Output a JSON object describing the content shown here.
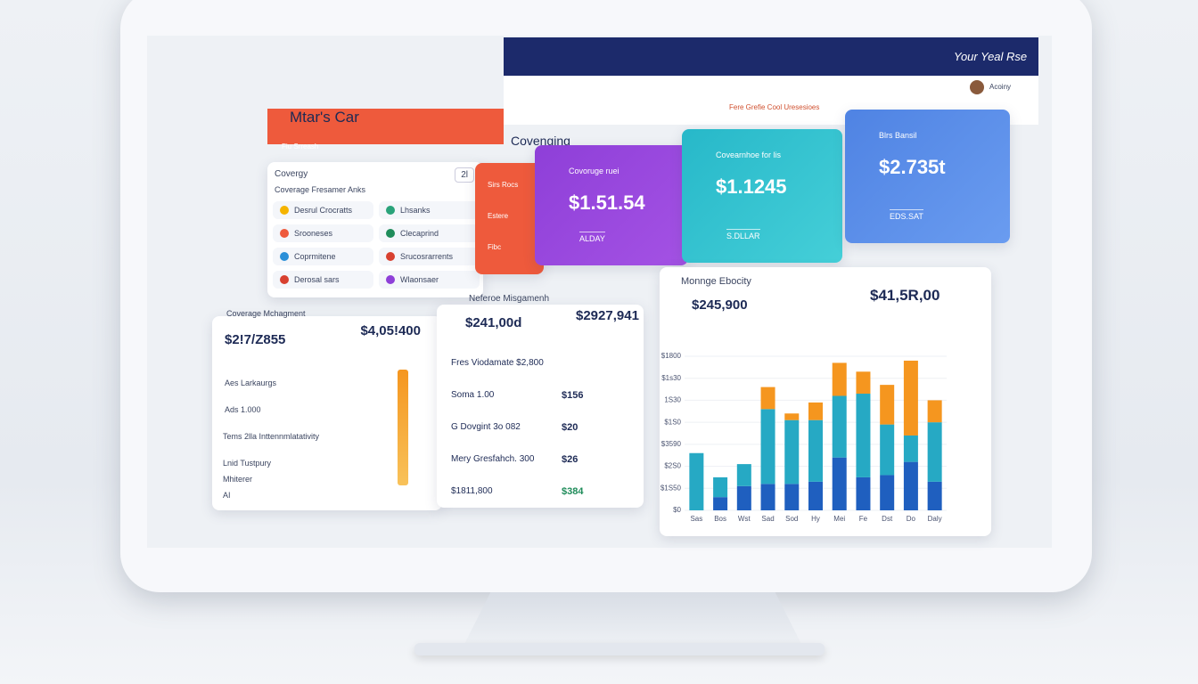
{
  "header": {
    "brand": "Mtar's Car",
    "top_right": "Your Yeal Rse",
    "user": "Acoiny",
    "tab": "Fere Grefie Cool Uresesioes",
    "section": "Fiu Srreash"
  },
  "coverage_list": {
    "title": "Covergy",
    "subtitle": "Coverage Fresamer Anks",
    "badge": "2l",
    "items": [
      "Desrul Crocratts",
      "Lhsanks",
      "Srooneses",
      "Clecaprind",
      "Coprmitene",
      "Srucosrarrents",
      "Derosal sars",
      "Wlaonsaer"
    ]
  },
  "cards": {
    "heading": "Covenging",
    "small": [
      "Sirs Rocs",
      "Estere",
      "Fibc"
    ],
    "items": [
      {
        "label": "Covoruge ruei",
        "value": "$1.51.54",
        "foot": "ALDAY"
      },
      {
        "label": "Covearnhoe for lis",
        "value": "$1.1245",
        "foot": "S.DLLAR"
      },
      {
        "label": "Blrs Bansil",
        "value": "$2.735t",
        "foot": "EDS.SAT"
      }
    ]
  },
  "management": {
    "title": "Coverage Mchagment",
    "left_value": "$2!7/Z855",
    "right_value": "$4,05!400",
    "rows": [
      "Aes Larkaurgs",
      "Ads 1.000",
      "Tems 2lla Inttennmlatativity",
      "Lnid Tustpury",
      "Mhiterer",
      "AI"
    ]
  },
  "reference": {
    "title": "Neferoe Misgamenh",
    "left_value": "$241,00d",
    "right_value": "$2927,941",
    "rows": [
      {
        "label": "Fres Viodamate $2,800",
        "value": ""
      },
      {
        "label": "Soma 1.00",
        "value": "$156"
      },
      {
        "label": "G Dovgint 3o 082",
        "value": "$20"
      },
      {
        "label": "Mery Gresfahch. 300",
        "value": "$26"
      },
      {
        "label": "$1811,800",
        "value": "$384"
      }
    ]
  },
  "bar_chart": {
    "type": "bar",
    "title": "Monnge Ebocity",
    "subtitle": "$245,900",
    "total": "$41,5R,00",
    "categories": [
      "Sas",
      "Bos",
      "Wst",
      "Sad",
      "Sod",
      "Hy",
      "Mei",
      "Fe",
      "Dst",
      "Do",
      "Daly"
    ],
    "series": [
      {
        "color": "#1f5fbf",
        "values": [
          0,
          0.6,
          1.1,
          1.2,
          1.2,
          1.3,
          2.4,
          1.5,
          1.6,
          2.2,
          1.3
        ]
      },
      {
        "color": "#26a9c4",
        "values": [
          2.6,
          0.9,
          1.0,
          3.4,
          2.9,
          2.8,
          2.8,
          3.8,
          2.3,
          1.2,
          2.7
        ]
      },
      {
        "color": "#f5961f",
        "values": [
          0,
          0,
          0,
          1.0,
          0.3,
          0.8,
          1.5,
          1.0,
          1.8,
          3.4,
          1.0
        ]
      }
    ],
    "ylim": [
      0,
      7
    ],
    "yticks": [
      {
        "value": 0,
        "label": "$0"
      },
      {
        "value": 1,
        "label": "$1S50"
      },
      {
        "value": 2,
        "label": "$2S0"
      },
      {
        "value": 3,
        "label": "$3590"
      },
      {
        "value": 4,
        "label": "$1S0"
      },
      {
        "value": 5,
        "label": "1S30"
      },
      {
        "value": 6,
        "label": "$1s30"
      },
      {
        "value": 7,
        "label": "$1800"
      }
    ]
  }
}
